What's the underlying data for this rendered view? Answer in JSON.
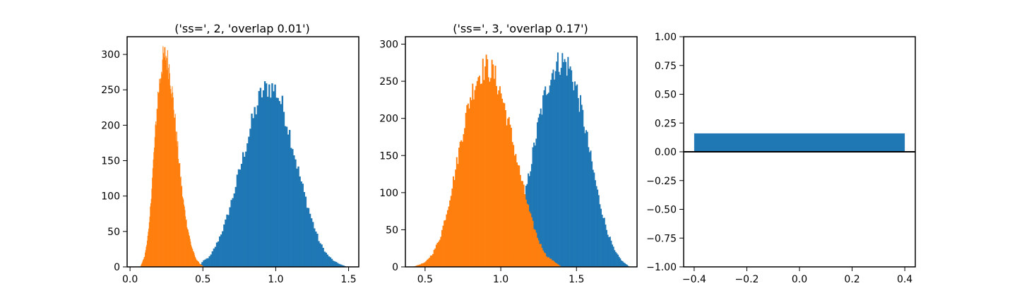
{
  "colors": {
    "blue": "#1f77b4",
    "orange": "#ff7f0e",
    "axis": "#000000"
  },
  "chart_data": [
    {
      "type": "histogram",
      "title": "('ss=', 2, 'overlap 0.01')",
      "xlabel": "",
      "ylabel": "",
      "xlim": [
        -0.02,
        1.57
      ],
      "ylim": [
        0,
        325
      ],
      "xticks": [
        0.0,
        0.5,
        1.0,
        1.5
      ],
      "xtick_labels": [
        "0.0",
        "0.5",
        "1.0",
        "1.5"
      ],
      "yticks": [
        0,
        50,
        100,
        150,
        200,
        250,
        300
      ],
      "ytick_labels": [
        "0",
        "50",
        "100",
        "150",
        "200",
        "250",
        "300"
      ],
      "grid": false,
      "legend": "none",
      "series": [
        {
          "color": "#1f77b4",
          "bin_width": 0.01,
          "x": [
            0.47,
            0.5,
            0.55,
            0.6,
            0.65,
            0.7,
            0.75,
            0.8,
            0.85,
            0.9,
            0.95,
            1.0,
            1.05,
            1.1,
            1.15,
            1.2,
            1.25,
            1.3,
            1.35,
            1.4,
            1.45,
            1.49
          ],
          "counts": [
            0,
            8,
            15,
            35,
            60,
            95,
            135,
            175,
            215,
            245,
            255,
            250,
            225,
            185,
            140,
            100,
            65,
            35,
            18,
            8,
            3,
            0
          ]
        },
        {
          "color": "#ff7f0e",
          "bin_width": 0.0035,
          "x": [
            0.07,
            0.1,
            0.13,
            0.16,
            0.19,
            0.22,
            0.245,
            0.27,
            0.3,
            0.33,
            0.36,
            0.39,
            0.42,
            0.45,
            0.48,
            0.51
          ],
          "counts": [
            0,
            15,
            55,
            150,
            240,
            290,
            300,
            280,
            225,
            160,
            100,
            60,
            30,
            12,
            4,
            0
          ]
        }
      ]
    },
    {
      "type": "histogram",
      "title": "('ss=', 3, 'overlap 0.17')",
      "xlabel": "",
      "ylabel": "",
      "xlim": [
        0.37,
        1.9
      ],
      "ylim": [
        0,
        310
      ],
      "xticks": [
        0.5,
        1.0,
        1.5
      ],
      "xtick_labels": [
        "0.5",
        "1.0",
        "1.5"
      ],
      "yticks": [
        0,
        50,
        100,
        150,
        200,
        250,
        300
      ],
      "ytick_labels": [
        "0",
        "50",
        "100",
        "150",
        "200",
        "250",
        "300"
      ],
      "grid": false,
      "legend": "none",
      "series": [
        {
          "color": "#1f77b4",
          "bin_width": 0.0075,
          "x": [
            1.05,
            1.1,
            1.15,
            1.2,
            1.25,
            1.3,
            1.35,
            1.4,
            1.45,
            1.5,
            1.55,
            1.6,
            1.65,
            1.7,
            1.75,
            1.8,
            1.85
          ],
          "counts": [
            0,
            40,
            85,
            140,
            195,
            240,
            268,
            278,
            270,
            240,
            195,
            140,
            90,
            50,
            22,
            8,
            0
          ]
        },
        {
          "color": "#ff7f0e",
          "bin_width": 0.0075,
          "x": [
            0.42,
            0.5,
            0.55,
            0.6,
            0.65,
            0.7,
            0.75,
            0.8,
            0.85,
            0.9,
            0.95,
            1.0,
            1.05,
            1.1,
            1.15,
            1.2,
            1.25,
            1.3,
            1.4
          ],
          "counts": [
            0,
            6,
            18,
            40,
            80,
            130,
            185,
            230,
            258,
            270,
            262,
            235,
            195,
            150,
            105,
            65,
            35,
            15,
            0
          ]
        }
      ]
    },
    {
      "type": "bar",
      "title": "",
      "xlabel": "",
      "ylabel": "",
      "categories": [
        0
      ],
      "values": [
        0.16
      ],
      "bar_width": 0.8,
      "color": "#1f77b4",
      "xlim": [
        -0.44,
        0.44
      ],
      "ylim": [
        -1.0,
        1.0
      ],
      "xticks": [
        -0.4,
        -0.2,
        0.0,
        0.2,
        0.4
      ],
      "xtick_labels": [
        "−0.4",
        "−0.2",
        "0.0",
        "0.2",
        "0.4"
      ],
      "yticks": [
        -1.0,
        -0.75,
        -0.5,
        -0.25,
        0.0,
        0.25,
        0.5,
        0.75,
        1.0
      ],
      "ytick_labels": [
        "−1.00",
        "−0.75",
        "−0.50",
        "−0.25",
        "0.00",
        "0.25",
        "0.50",
        "0.75",
        "1.00"
      ],
      "baseline": 0,
      "grid": false,
      "legend": "none"
    }
  ]
}
